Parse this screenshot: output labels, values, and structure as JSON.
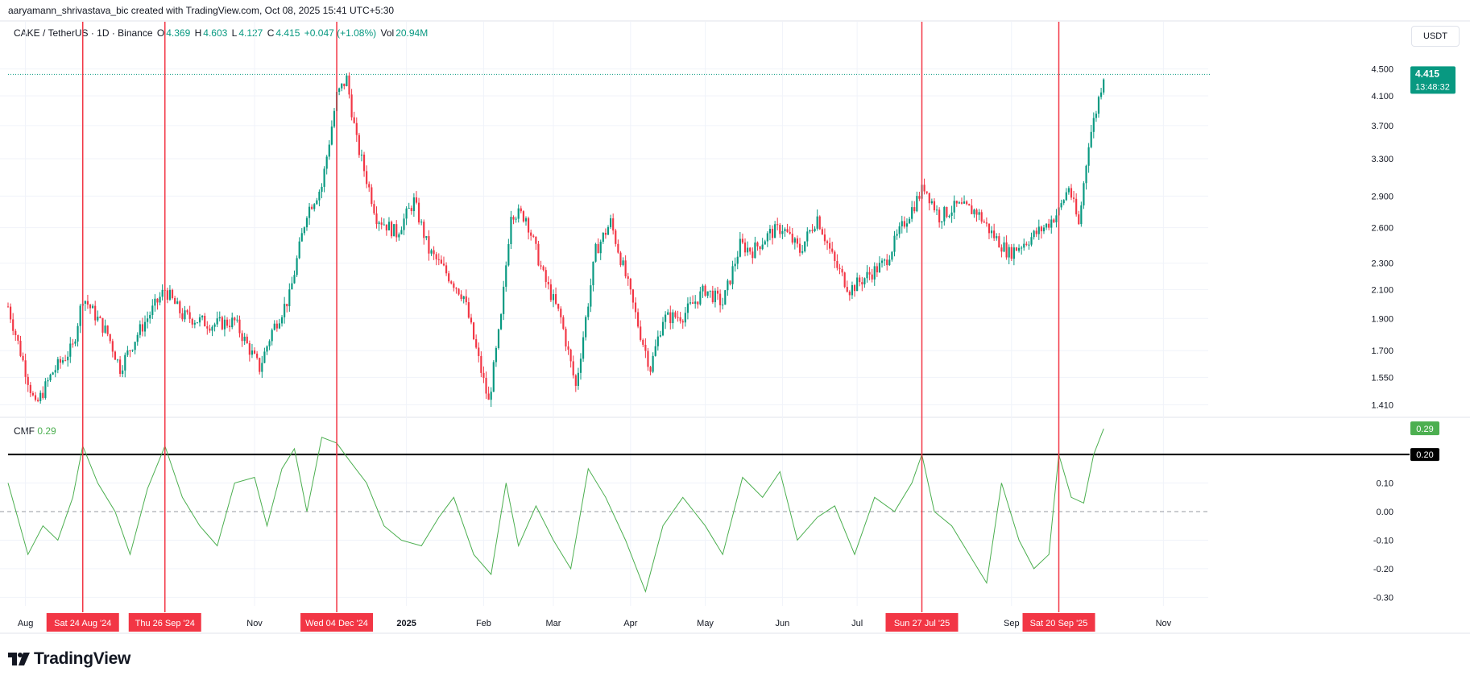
{
  "caption": "aaryamann_shrivastava_bic created with TradingView.com, Oct 08, 2025 15:41 UTC+5:30",
  "legend": {
    "symbol": "CAKE / TetherUS · 1D · Binance",
    "o_label": "O",
    "o_value": "4.369",
    "h_label": "H",
    "h_value": "4.603",
    "l_label": "L",
    "l_value": "4.127",
    "c_label": "C",
    "c_value": "4.415",
    "change": "+0.047 (+1.08%)",
    "vol_label": "Vol",
    "vol_value": "20.94M"
  },
  "currency_button": "USDT",
  "cmf": {
    "label": "CMF",
    "value": "0.29"
  },
  "brand": "TradingView",
  "colors": {
    "up": "#089981",
    "down": "#f23645",
    "cmf_line": "#4caf50",
    "marker": "#f23645",
    "threshold": "#000000"
  },
  "chart_data": [
    {
      "type": "candlestick",
      "title": "CAKE / TetherUS · 1D · Binance",
      "scale": "log",
      "ylim": [
        1.35,
        4.9
      ],
      "yticks": [
        "4.500",
        "4.100",
        "3.700",
        "3.300",
        "2.900",
        "2.600",
        "2.300",
        "2.100",
        "1.900",
        "1.700",
        "1.550",
        "1.410"
      ],
      "last_price": "4.415",
      "countdown": "13:48:32",
      "close_path": [
        [
          "2024-07-25",
          1.98
        ],
        [
          "2024-08-05",
          1.4
        ],
        [
          "2024-08-12",
          1.58
        ],
        [
          "2024-08-20",
          1.72
        ],
        [
          "2024-08-24",
          2.05
        ],
        [
          "2024-09-03",
          1.8
        ],
        [
          "2024-09-08",
          1.6
        ],
        [
          "2024-09-15",
          1.8
        ],
        [
          "2024-09-26",
          2.1
        ],
        [
          "2024-10-03",
          1.92
        ],
        [
          "2024-10-15",
          1.86
        ],
        [
          "2024-10-24",
          1.88
        ],
        [
          "2024-11-03",
          1.6
        ],
        [
          "2024-11-08",
          1.82
        ],
        [
          "2024-11-15",
          2.05
        ],
        [
          "2024-11-22",
          2.75
        ],
        [
          "2024-11-28",
          3.0
        ],
        [
          "2024-12-04",
          4.1
        ],
        [
          "2024-12-08",
          4.35
        ],
        [
          "2024-12-12",
          3.5
        ],
        [
          "2024-12-20",
          2.7
        ],
        [
          "2024-12-28",
          2.55
        ],
        [
          "2025-01-04",
          2.85
        ],
        [
          "2025-01-10",
          2.4
        ],
        [
          "2025-01-16",
          2.25
        ],
        [
          "2025-01-24",
          2.05
        ],
        [
          "2025-02-03",
          1.42
        ],
        [
          "2025-02-08",
          1.9
        ],
        [
          "2025-02-12",
          2.75
        ],
        [
          "2025-02-18",
          2.7
        ],
        [
          "2025-02-25",
          2.2
        ],
        [
          "2025-03-04",
          1.9
        ],
        [
          "2025-03-10",
          1.5
        ],
        [
          "2025-03-18",
          2.4
        ],
        [
          "2025-03-24",
          2.65
        ],
        [
          "2025-03-30",
          2.2
        ],
        [
          "2025-04-05",
          1.8
        ],
        [
          "2025-04-09",
          1.6
        ],
        [
          "2025-04-14",
          1.9
        ],
        [
          "2025-04-22",
          1.92
        ],
        [
          "2025-05-01",
          2.1
        ],
        [
          "2025-05-08",
          2.0
        ],
        [
          "2025-05-15",
          2.45
        ],
        [
          "2025-05-20",
          2.4
        ],
        [
          "2025-05-27",
          2.55
        ],
        [
          "2025-06-01",
          2.6
        ],
        [
          "2025-06-08",
          2.4
        ],
        [
          "2025-06-15",
          2.7
        ],
        [
          "2025-06-22",
          2.3
        ],
        [
          "2025-06-28",
          2.1
        ],
        [
          "2025-07-05",
          2.2
        ],
        [
          "2025-07-12",
          2.3
        ],
        [
          "2025-07-20",
          2.65
        ],
        [
          "2025-07-28",
          3.0
        ],
        [
          "2025-08-03",
          2.7
        ],
        [
          "2025-08-10",
          2.8
        ],
        [
          "2025-08-18",
          2.75
        ],
        [
          "2025-08-24",
          2.55
        ],
        [
          "2025-08-31",
          2.38
        ],
        [
          "2025-09-08",
          2.5
        ],
        [
          "2025-09-15",
          2.62
        ],
        [
          "2025-09-20",
          2.75
        ],
        [
          "2025-09-24",
          3.0
        ],
        [
          "2025-09-28",
          2.62
        ],
        [
          "2025-10-02",
          3.5
        ],
        [
          "2025-10-05",
          3.9
        ],
        [
          "2025-10-08",
          4.415
        ]
      ]
    },
    {
      "type": "line",
      "title": "CMF",
      "ylim": [
        -0.33,
        0.33
      ],
      "yticks": [
        "0.10",
        "0.00",
        "-0.10",
        "-0.20",
        "-0.30"
      ],
      "current_value": "0.29",
      "threshold": "0.20",
      "series": [
        {
          "points": [
            [
              "2024-07-25",
              0.1
            ],
            [
              "2024-08-02",
              -0.15
            ],
            [
              "2024-08-08",
              -0.05
            ],
            [
              "2024-08-14",
              -0.1
            ],
            [
              "2024-08-20",
              0.05
            ],
            [
              "2024-08-24",
              0.23
            ],
            [
              "2024-08-30",
              0.1
            ],
            [
              "2024-09-06",
              0.0
            ],
            [
              "2024-09-12",
              -0.15
            ],
            [
              "2024-09-19",
              0.08
            ],
            [
              "2024-09-26",
              0.23
            ],
            [
              "2024-10-03",
              0.05
            ],
            [
              "2024-10-10",
              -0.05
            ],
            [
              "2024-10-17",
              -0.12
            ],
            [
              "2024-10-24",
              0.1
            ],
            [
              "2024-11-01",
              0.12
            ],
            [
              "2024-11-06",
              -0.05
            ],
            [
              "2024-11-12",
              0.15
            ],
            [
              "2024-11-17",
              0.22
            ],
            [
              "2024-11-22",
              0.0
            ],
            [
              "2024-11-28",
              0.26
            ],
            [
              "2024-12-04",
              0.24
            ],
            [
              "2024-12-09",
              0.18
            ],
            [
              "2024-12-16",
              0.1
            ],
            [
              "2024-12-23",
              -0.05
            ],
            [
              "2024-12-30",
              -0.1
            ],
            [
              "2025-01-07",
              -0.12
            ],
            [
              "2025-01-14",
              -0.02
            ],
            [
              "2025-01-20",
              0.05
            ],
            [
              "2025-01-28",
              -0.15
            ],
            [
              "2025-02-04",
              -0.22
            ],
            [
              "2025-02-10",
              0.1
            ],
            [
              "2025-02-15",
              -0.12
            ],
            [
              "2025-02-22",
              0.02
            ],
            [
              "2025-03-01",
              -0.1
            ],
            [
              "2025-03-08",
              -0.2
            ],
            [
              "2025-03-15",
              0.15
            ],
            [
              "2025-03-22",
              0.05
            ],
            [
              "2025-03-30",
              -0.1
            ],
            [
              "2025-04-07",
              -0.28
            ],
            [
              "2025-04-14",
              -0.05
            ],
            [
              "2025-04-22",
              0.05
            ],
            [
              "2025-05-01",
              -0.05
            ],
            [
              "2025-05-08",
              -0.15
            ],
            [
              "2025-05-16",
              0.12
            ],
            [
              "2025-05-24",
              0.05
            ],
            [
              "2025-05-31",
              0.14
            ],
            [
              "2025-06-07",
              -0.1
            ],
            [
              "2025-06-15",
              -0.02
            ],
            [
              "2025-06-22",
              0.02
            ],
            [
              "2025-06-30",
              -0.15
            ],
            [
              "2025-07-08",
              0.05
            ],
            [
              "2025-07-16",
              0.0
            ],
            [
              "2025-07-23",
              0.1
            ],
            [
              "2025-07-27",
              0.2
            ],
            [
              "2025-08-01",
              0.0
            ],
            [
              "2025-08-08",
              -0.05
            ],
            [
              "2025-08-15",
              -0.15
            ],
            [
              "2025-08-22",
              -0.25
            ],
            [
              "2025-08-28",
              0.1
            ],
            [
              "2025-09-04",
              -0.1
            ],
            [
              "2025-09-10",
              -0.2
            ],
            [
              "2025-09-16",
              -0.15
            ],
            [
              "2025-09-20",
              0.2
            ],
            [
              "2025-09-25",
              0.05
            ],
            [
              "2025-09-30",
              0.03
            ],
            [
              "2025-10-04",
              0.2
            ],
            [
              "2025-10-08",
              0.29
            ]
          ]
        }
      ]
    }
  ],
  "x_axis": {
    "labels": [
      {
        "text": "Aug",
        "date": "2024-08-01"
      },
      {
        "text": "Nov",
        "date": "2024-11-01"
      },
      {
        "text": "2025",
        "date": "2025-01-01"
      },
      {
        "text": "Feb",
        "date": "2025-02-01"
      },
      {
        "text": "Mar",
        "date": "2025-03-01"
      },
      {
        "text": "Apr",
        "date": "2025-04-01"
      },
      {
        "text": "May",
        "date": "2025-05-01"
      },
      {
        "text": "Jun",
        "date": "2025-06-01"
      },
      {
        "text": "Jul",
        "date": "2025-07-01"
      },
      {
        "text": "Sep",
        "date": "2025-09-01"
      },
      {
        "text": "Nov",
        "date": "2025-11-01"
      }
    ],
    "markers": [
      {
        "text": "Sat 24 Aug '24",
        "date": "2024-08-24"
      },
      {
        "text": "Thu 26 Sep '24",
        "date": "2024-09-26"
      },
      {
        "text": "Wed 04 Dec '24",
        "date": "2024-12-04"
      },
      {
        "text": "Sun 27 Jul '25",
        "date": "2025-07-27"
      },
      {
        "text": "Sat 20 Sep '25",
        "date": "2025-09-20"
      }
    ]
  }
}
